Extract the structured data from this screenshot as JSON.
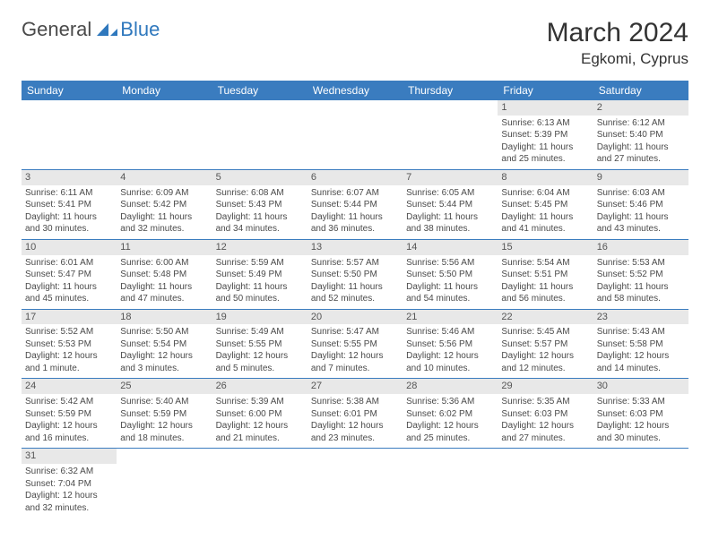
{
  "brand": {
    "part1": "General",
    "part2": "Blue"
  },
  "title": "March 2024",
  "location": "Egkomi, Cyprus",
  "colors": {
    "header_bg": "#3a7cbf",
    "header_text": "#ffffff",
    "border": "#3a7cbf",
    "daynum_bg": "#e8e8e8",
    "text": "#4a4a4a",
    "brand_gray": "#4a4a4a",
    "brand_blue": "#2f78bd"
  },
  "weekdays": [
    "Sunday",
    "Monday",
    "Tuesday",
    "Wednesday",
    "Thursday",
    "Friday",
    "Saturday"
  ],
  "weeks": [
    [
      null,
      null,
      null,
      null,
      null,
      {
        "d": "1",
        "sr": "Sunrise: 6:13 AM",
        "ss": "Sunset: 5:39 PM",
        "dl1": "Daylight: 11 hours",
        "dl2": "and 25 minutes."
      },
      {
        "d": "2",
        "sr": "Sunrise: 6:12 AM",
        "ss": "Sunset: 5:40 PM",
        "dl1": "Daylight: 11 hours",
        "dl2": "and 27 minutes."
      }
    ],
    [
      {
        "d": "3",
        "sr": "Sunrise: 6:11 AM",
        "ss": "Sunset: 5:41 PM",
        "dl1": "Daylight: 11 hours",
        "dl2": "and 30 minutes."
      },
      {
        "d": "4",
        "sr": "Sunrise: 6:09 AM",
        "ss": "Sunset: 5:42 PM",
        "dl1": "Daylight: 11 hours",
        "dl2": "and 32 minutes."
      },
      {
        "d": "5",
        "sr": "Sunrise: 6:08 AM",
        "ss": "Sunset: 5:43 PM",
        "dl1": "Daylight: 11 hours",
        "dl2": "and 34 minutes."
      },
      {
        "d": "6",
        "sr": "Sunrise: 6:07 AM",
        "ss": "Sunset: 5:44 PM",
        "dl1": "Daylight: 11 hours",
        "dl2": "and 36 minutes."
      },
      {
        "d": "7",
        "sr": "Sunrise: 6:05 AM",
        "ss": "Sunset: 5:44 PM",
        "dl1": "Daylight: 11 hours",
        "dl2": "and 38 minutes."
      },
      {
        "d": "8",
        "sr": "Sunrise: 6:04 AM",
        "ss": "Sunset: 5:45 PM",
        "dl1": "Daylight: 11 hours",
        "dl2": "and 41 minutes."
      },
      {
        "d": "9",
        "sr": "Sunrise: 6:03 AM",
        "ss": "Sunset: 5:46 PM",
        "dl1": "Daylight: 11 hours",
        "dl2": "and 43 minutes."
      }
    ],
    [
      {
        "d": "10",
        "sr": "Sunrise: 6:01 AM",
        "ss": "Sunset: 5:47 PM",
        "dl1": "Daylight: 11 hours",
        "dl2": "and 45 minutes."
      },
      {
        "d": "11",
        "sr": "Sunrise: 6:00 AM",
        "ss": "Sunset: 5:48 PM",
        "dl1": "Daylight: 11 hours",
        "dl2": "and 47 minutes."
      },
      {
        "d": "12",
        "sr": "Sunrise: 5:59 AM",
        "ss": "Sunset: 5:49 PM",
        "dl1": "Daylight: 11 hours",
        "dl2": "and 50 minutes."
      },
      {
        "d": "13",
        "sr": "Sunrise: 5:57 AM",
        "ss": "Sunset: 5:50 PM",
        "dl1": "Daylight: 11 hours",
        "dl2": "and 52 minutes."
      },
      {
        "d": "14",
        "sr": "Sunrise: 5:56 AM",
        "ss": "Sunset: 5:50 PM",
        "dl1": "Daylight: 11 hours",
        "dl2": "and 54 minutes."
      },
      {
        "d": "15",
        "sr": "Sunrise: 5:54 AM",
        "ss": "Sunset: 5:51 PM",
        "dl1": "Daylight: 11 hours",
        "dl2": "and 56 minutes."
      },
      {
        "d": "16",
        "sr": "Sunrise: 5:53 AM",
        "ss": "Sunset: 5:52 PM",
        "dl1": "Daylight: 11 hours",
        "dl2": "and 58 minutes."
      }
    ],
    [
      {
        "d": "17",
        "sr": "Sunrise: 5:52 AM",
        "ss": "Sunset: 5:53 PM",
        "dl1": "Daylight: 12 hours",
        "dl2": "and 1 minute."
      },
      {
        "d": "18",
        "sr": "Sunrise: 5:50 AM",
        "ss": "Sunset: 5:54 PM",
        "dl1": "Daylight: 12 hours",
        "dl2": "and 3 minutes."
      },
      {
        "d": "19",
        "sr": "Sunrise: 5:49 AM",
        "ss": "Sunset: 5:55 PM",
        "dl1": "Daylight: 12 hours",
        "dl2": "and 5 minutes."
      },
      {
        "d": "20",
        "sr": "Sunrise: 5:47 AM",
        "ss": "Sunset: 5:55 PM",
        "dl1": "Daylight: 12 hours",
        "dl2": "and 7 minutes."
      },
      {
        "d": "21",
        "sr": "Sunrise: 5:46 AM",
        "ss": "Sunset: 5:56 PM",
        "dl1": "Daylight: 12 hours",
        "dl2": "and 10 minutes."
      },
      {
        "d": "22",
        "sr": "Sunrise: 5:45 AM",
        "ss": "Sunset: 5:57 PM",
        "dl1": "Daylight: 12 hours",
        "dl2": "and 12 minutes."
      },
      {
        "d": "23",
        "sr": "Sunrise: 5:43 AM",
        "ss": "Sunset: 5:58 PM",
        "dl1": "Daylight: 12 hours",
        "dl2": "and 14 minutes."
      }
    ],
    [
      {
        "d": "24",
        "sr": "Sunrise: 5:42 AM",
        "ss": "Sunset: 5:59 PM",
        "dl1": "Daylight: 12 hours",
        "dl2": "and 16 minutes."
      },
      {
        "d": "25",
        "sr": "Sunrise: 5:40 AM",
        "ss": "Sunset: 5:59 PM",
        "dl1": "Daylight: 12 hours",
        "dl2": "and 18 minutes."
      },
      {
        "d": "26",
        "sr": "Sunrise: 5:39 AM",
        "ss": "Sunset: 6:00 PM",
        "dl1": "Daylight: 12 hours",
        "dl2": "and 21 minutes."
      },
      {
        "d": "27",
        "sr": "Sunrise: 5:38 AM",
        "ss": "Sunset: 6:01 PM",
        "dl1": "Daylight: 12 hours",
        "dl2": "and 23 minutes."
      },
      {
        "d": "28",
        "sr": "Sunrise: 5:36 AM",
        "ss": "Sunset: 6:02 PM",
        "dl1": "Daylight: 12 hours",
        "dl2": "and 25 minutes."
      },
      {
        "d": "29",
        "sr": "Sunrise: 5:35 AM",
        "ss": "Sunset: 6:03 PM",
        "dl1": "Daylight: 12 hours",
        "dl2": "and 27 minutes."
      },
      {
        "d": "30",
        "sr": "Sunrise: 5:33 AM",
        "ss": "Sunset: 6:03 PM",
        "dl1": "Daylight: 12 hours",
        "dl2": "and 30 minutes."
      }
    ],
    [
      {
        "d": "31",
        "sr": "Sunrise: 6:32 AM",
        "ss": "Sunset: 7:04 PM",
        "dl1": "Daylight: 12 hours",
        "dl2": "and 32 minutes."
      },
      null,
      null,
      null,
      null,
      null,
      null
    ]
  ]
}
